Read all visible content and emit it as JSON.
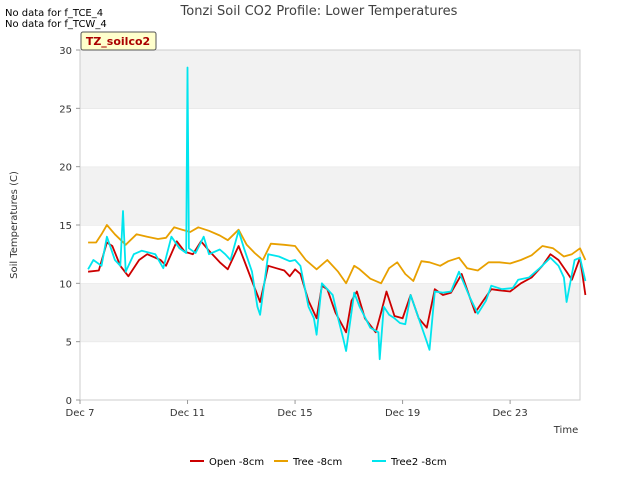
{
  "chart_data": {
    "type": "line",
    "title": "Tonzi Soil CO2 Profile: Lower Temperatures",
    "xlabel": "Time",
    "ylabel": "Soil Temperatures (C)",
    "ylim": [
      0,
      30
    ],
    "yticks": [
      0,
      5,
      10,
      15,
      20,
      25,
      30
    ],
    "xlim": [
      7,
      25.6
    ],
    "xticks": [
      {
        "value": 7,
        "label": "Dec 7"
      },
      {
        "value": 11,
        "label": "Dec 11"
      },
      {
        "value": 15,
        "label": "Dec 15"
      },
      {
        "value": 19,
        "label": "Dec 19"
      },
      {
        "value": 23,
        "label": "Dec 23"
      }
    ],
    "grid": "horizontal bands",
    "legend_position": "bottom",
    "series": [
      {
        "name": "Open -8cm",
        "color": "#cc0000",
        "points": [
          [
            7.3,
            11.0
          ],
          [
            7.7,
            11.1
          ],
          [
            8.0,
            13.5
          ],
          [
            8.2,
            13.2
          ],
          [
            8.5,
            11.5
          ],
          [
            8.8,
            10.6
          ],
          [
            9.2,
            12.0
          ],
          [
            9.5,
            12.5
          ],
          [
            10.0,
            12.0
          ],
          [
            10.2,
            11.5
          ],
          [
            10.6,
            13.6
          ],
          [
            10.9,
            12.7
          ],
          [
            11.2,
            12.5
          ],
          [
            11.5,
            13.6
          ],
          [
            11.8,
            12.8
          ],
          [
            12.2,
            11.8
          ],
          [
            12.5,
            11.2
          ],
          [
            12.9,
            13.2
          ],
          [
            13.1,
            12.0
          ],
          [
            13.4,
            10.2
          ],
          [
            13.7,
            8.4
          ],
          [
            14.0,
            11.5
          ],
          [
            14.3,
            11.3
          ],
          [
            14.6,
            11.1
          ],
          [
            14.8,
            10.6
          ],
          [
            15.0,
            11.2
          ],
          [
            15.2,
            10.8
          ],
          [
            15.5,
            8.5
          ],
          [
            15.8,
            7.0
          ],
          [
            16.0,
            9.8
          ],
          [
            16.2,
            9.5
          ],
          [
            16.5,
            7.5
          ],
          [
            16.9,
            5.8
          ],
          [
            17.1,
            8.5
          ],
          [
            17.3,
            9.3
          ],
          [
            17.6,
            7.0
          ],
          [
            18.0,
            5.8
          ],
          [
            18.2,
            7.5
          ],
          [
            18.4,
            9.3
          ],
          [
            18.7,
            7.2
          ],
          [
            19.0,
            7.0
          ],
          [
            19.3,
            9.0
          ],
          [
            19.6,
            7.0
          ],
          [
            19.9,
            6.2
          ],
          [
            20.2,
            9.5
          ],
          [
            20.5,
            9.0
          ],
          [
            20.8,
            9.2
          ],
          [
            21.2,
            10.8
          ],
          [
            21.5,
            8.8
          ],
          [
            21.7,
            7.5
          ],
          [
            22.0,
            8.5
          ],
          [
            22.3,
            9.5
          ],
          [
            22.6,
            9.4
          ],
          [
            23.0,
            9.3
          ],
          [
            23.4,
            10.0
          ],
          [
            23.8,
            10.5
          ],
          [
            24.2,
            11.5
          ],
          [
            24.5,
            12.5
          ],
          [
            24.8,
            12.0
          ],
          [
            25.1,
            11.0
          ],
          [
            25.3,
            10.3
          ],
          [
            25.6,
            12.2
          ],
          [
            25.8,
            9.0
          ]
        ]
      },
      {
        "name": "Tree -8cm",
        "color": "#e8a000",
        "points": [
          [
            7.3,
            13.5
          ],
          [
            7.6,
            13.5
          ],
          [
            7.8,
            14.2
          ],
          [
            8.0,
            15.0
          ],
          [
            8.3,
            14.2
          ],
          [
            8.7,
            13.3
          ],
          [
            9.1,
            14.2
          ],
          [
            9.5,
            14.0
          ],
          [
            9.9,
            13.8
          ],
          [
            10.2,
            13.9
          ],
          [
            10.5,
            14.8
          ],
          [
            10.8,
            14.6
          ],
          [
            11.1,
            14.4
          ],
          [
            11.4,
            14.8
          ],
          [
            11.8,
            14.5
          ],
          [
            12.2,
            14.1
          ],
          [
            12.5,
            13.7
          ],
          [
            12.9,
            14.6
          ],
          [
            13.2,
            13.3
          ],
          [
            13.5,
            12.6
          ],
          [
            13.8,
            12.0
          ],
          [
            14.1,
            13.4
          ],
          [
            14.6,
            13.3
          ],
          [
            15.0,
            13.2
          ],
          [
            15.4,
            12.0
          ],
          [
            15.8,
            11.2
          ],
          [
            16.2,
            12.0
          ],
          [
            16.6,
            11.0
          ],
          [
            16.9,
            10.0
          ],
          [
            17.2,
            11.5
          ],
          [
            17.4,
            11.2
          ],
          [
            17.8,
            10.4
          ],
          [
            18.2,
            10.0
          ],
          [
            18.5,
            11.3
          ],
          [
            18.8,
            11.8
          ],
          [
            19.1,
            10.8
          ],
          [
            19.4,
            10.2
          ],
          [
            19.7,
            11.9
          ],
          [
            20.0,
            11.8
          ],
          [
            20.4,
            11.5
          ],
          [
            20.7,
            11.9
          ],
          [
            21.1,
            12.2
          ],
          [
            21.4,
            11.3
          ],
          [
            21.8,
            11.1
          ],
          [
            22.2,
            11.8
          ],
          [
            22.6,
            11.8
          ],
          [
            23.0,
            11.7
          ],
          [
            23.4,
            12.0
          ],
          [
            23.8,
            12.4
          ],
          [
            24.2,
            13.2
          ],
          [
            24.6,
            13.0
          ],
          [
            25.0,
            12.3
          ],
          [
            25.3,
            12.5
          ],
          [
            25.6,
            13.0
          ],
          [
            25.8,
            12.0
          ]
        ]
      },
      {
        "name": "Tree2 -8cm",
        "color": "#00e5ee",
        "points": [
          [
            7.3,
            11.2
          ],
          [
            7.5,
            12.0
          ],
          [
            7.8,
            11.5
          ],
          [
            8.0,
            14.0
          ],
          [
            8.3,
            12.0
          ],
          [
            8.5,
            11.5
          ],
          [
            8.6,
            16.2
          ],
          [
            8.7,
            11.0
          ],
          [
            9.0,
            12.5
          ],
          [
            9.3,
            12.8
          ],
          [
            9.8,
            12.5
          ],
          [
            10.1,
            11.3
          ],
          [
            10.4,
            14.0
          ],
          [
            10.7,
            13.0
          ],
          [
            10.95,
            12.6
          ],
          [
            11.0,
            28.5
          ],
          [
            11.05,
            13.0
          ],
          [
            11.3,
            12.6
          ],
          [
            11.6,
            14.0
          ],
          [
            11.8,
            12.5
          ],
          [
            12.2,
            12.9
          ],
          [
            12.4,
            12.5
          ],
          [
            12.6,
            12.0
          ],
          [
            12.9,
            14.5
          ],
          [
            13.1,
            13.0
          ],
          [
            13.4,
            11.0
          ],
          [
            13.6,
            8.0
          ],
          [
            13.7,
            7.3
          ],
          [
            14.0,
            12.5
          ],
          [
            14.4,
            12.3
          ],
          [
            14.8,
            11.9
          ],
          [
            15.0,
            12.0
          ],
          [
            15.2,
            11.5
          ],
          [
            15.5,
            8.0
          ],
          [
            15.7,
            7.0
          ],
          [
            15.8,
            5.6
          ],
          [
            16.0,
            10.0
          ],
          [
            16.4,
            9.0
          ],
          [
            16.6,
            7.0
          ],
          [
            16.8,
            5.2
          ],
          [
            16.9,
            4.2
          ],
          [
            17.2,
            9.2
          ],
          [
            17.4,
            8.0
          ],
          [
            17.8,
            6.2
          ],
          [
            18.1,
            5.8
          ],
          [
            18.15,
            3.5
          ],
          [
            18.3,
            8.0
          ],
          [
            18.5,
            7.3
          ],
          [
            18.7,
            7.0
          ],
          [
            18.9,
            6.6
          ],
          [
            19.1,
            6.5
          ],
          [
            19.3,
            9.0
          ],
          [
            19.6,
            7.0
          ],
          [
            19.9,
            5.0
          ],
          [
            20.0,
            4.3
          ],
          [
            20.2,
            9.3
          ],
          [
            20.5,
            9.2
          ],
          [
            20.8,
            9.3
          ],
          [
            21.1,
            11.0
          ],
          [
            21.5,
            8.8
          ],
          [
            21.8,
            7.4
          ],
          [
            22.1,
            8.5
          ],
          [
            22.3,
            9.8
          ],
          [
            22.7,
            9.5
          ],
          [
            23.1,
            9.6
          ],
          [
            23.3,
            10.3
          ],
          [
            23.7,
            10.5
          ],
          [
            24.1,
            11.3
          ],
          [
            24.5,
            12.2
          ],
          [
            24.8,
            11.5
          ],
          [
            25.0,
            10.5
          ],
          [
            25.1,
            8.4
          ],
          [
            25.4,
            12.0
          ],
          [
            25.6,
            12.2
          ],
          [
            25.8,
            10.2
          ]
        ]
      }
    ]
  },
  "badge": {
    "label": "TZ_soilco2"
  },
  "notices": [
    "No data for f_TCE_4",
    "No data for f_TCW_4"
  ]
}
